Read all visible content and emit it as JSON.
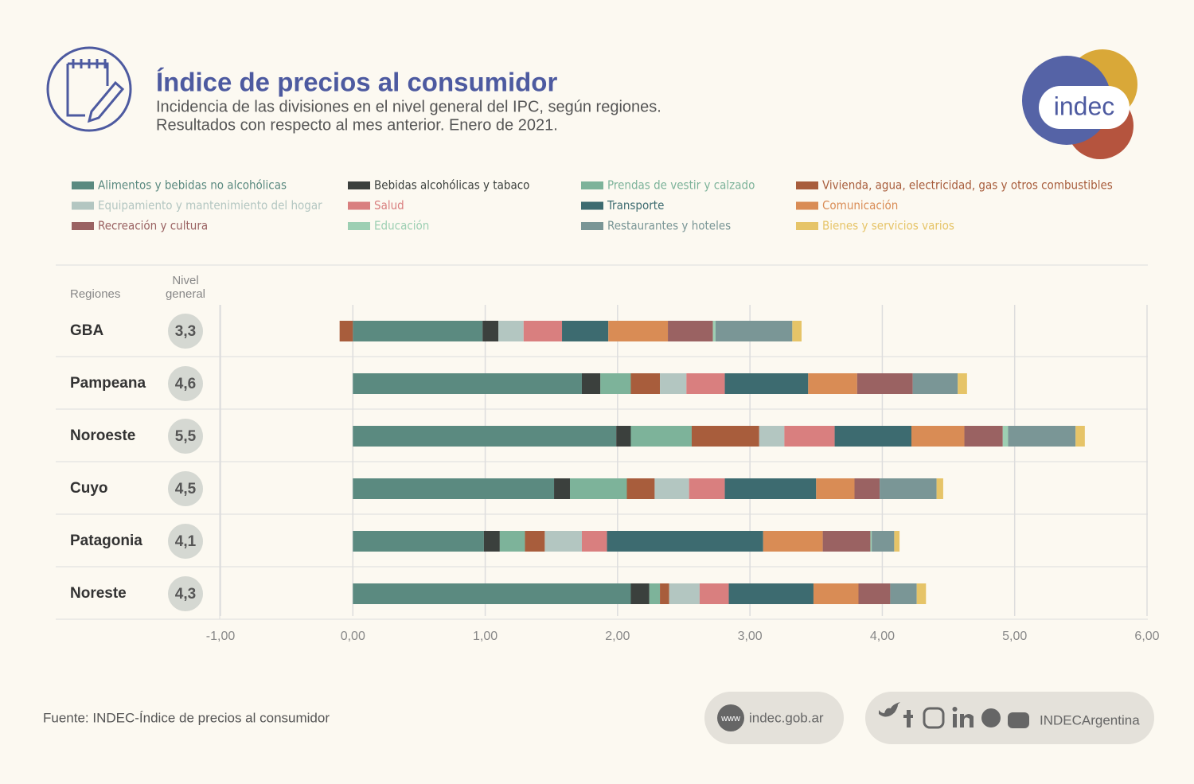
{
  "header": {
    "title": "Índice de precios al consumidor",
    "subtitle_lines": [
      "Incidencia de las divisiones en el nivel general del IPC, según regiones.",
      "Resultados con respecto al mes anterior. Enero de 2021."
    ],
    "logo": "indec"
  },
  "chart_data": {
    "type": "stacked-bar-horizontal",
    "row_header": "Regiones",
    "level_header": [
      "Nivel",
      "general"
    ],
    "categories": [
      "GBA",
      "Pampeana",
      "Noroeste",
      "Cuyo",
      "Patagonia",
      "Noreste"
    ],
    "general_level": {
      "values": [
        3.3,
        4.6,
        5.5,
        4.5,
        4.1,
        4.3
      ],
      "value_labels": [
        "3,3",
        "4,6",
        "5,5",
        "4,5",
        "4,1",
        "4,3"
      ]
    },
    "series": [
      {
        "name": "Alimentos y bebidas no alcohólicas",
        "color": "#5b8a80",
        "values": [
          0.98,
          1.73,
          1.99,
          1.52,
          0.99,
          2.1
        ]
      },
      {
        "name": "Bebidas alcohólicas y tabaco",
        "color": "#3b403d",
        "values": [
          0.12,
          0.14,
          0.11,
          0.12,
          0.12,
          0.14
        ]
      },
      {
        "name": "Prendas de vestir y calzado",
        "color": "#7db39a",
        "values": [
          0,
          0.23,
          0.46,
          0.43,
          0.19,
          0.08
        ]
      },
      {
        "name": "Vivienda, agua, electricidad, gas y otros combustibles",
        "color": "#a85d3c",
        "values": [
          -0.1,
          0.22,
          0.51,
          0.21,
          0.15,
          0.07
        ]
      },
      {
        "name": "Equipamiento y mantenimiento del hogar",
        "color": "#b3c6c1",
        "values": [
          0.19,
          0.2,
          0.19,
          0.26,
          0.28,
          0.23
        ]
      },
      {
        "name": "Salud",
        "color": "#d97f7f",
        "values": [
          0.29,
          0.29,
          0.38,
          0.27,
          0.19,
          0.22
        ]
      },
      {
        "name": "Transporte",
        "color": "#3d6b70",
        "values": [
          0.35,
          0.63,
          0.58,
          0.69,
          1.18,
          0.64
        ]
      },
      {
        "name": "Comunicación",
        "color": "#d98c55",
        "values": [
          0.45,
          0.37,
          0.4,
          0.29,
          0.45,
          0.34
        ]
      },
      {
        "name": "Recreación y cultura",
        "color": "#9a6262",
        "values": [
          0.34,
          0.42,
          0.29,
          0.19,
          0.36,
          0.24
        ]
      },
      {
        "name": "Educación",
        "color": "#9dcfb3",
        "values": [
          0.02,
          0,
          0.04,
          0,
          0.01,
          0
        ]
      },
      {
        "name": "Restaurantes y hoteles",
        "color": "#7a9696",
        "values": [
          0.58,
          0.34,
          0.51,
          0.43,
          0.17,
          0.2
        ]
      },
      {
        "name": "Bienes y servicios varios",
        "color": "#e6c468",
        "values": [
          0.07,
          0.07,
          0.07,
          0.05,
          0.04,
          0.07
        ]
      }
    ],
    "xlim": [
      -1,
      6
    ],
    "xticks": [
      {
        "value": -1,
        "label": "-1,00"
      },
      {
        "value": 0,
        "label": "0,00"
      },
      {
        "value": 1,
        "label": "1,00"
      },
      {
        "value": 2,
        "label": "2,00"
      },
      {
        "value": 3,
        "label": "3,00"
      },
      {
        "value": 4,
        "label": "4,00"
      },
      {
        "value": 5,
        "label": "5,00"
      },
      {
        "value": 6,
        "label": "6,00"
      }
    ],
    "grid": true
  },
  "footer": {
    "source": "Fuente: INDEC-Índice de precios al consumidor",
    "www": "www",
    "website": "indec.gob.ar",
    "social": "INDECArgentina"
  }
}
